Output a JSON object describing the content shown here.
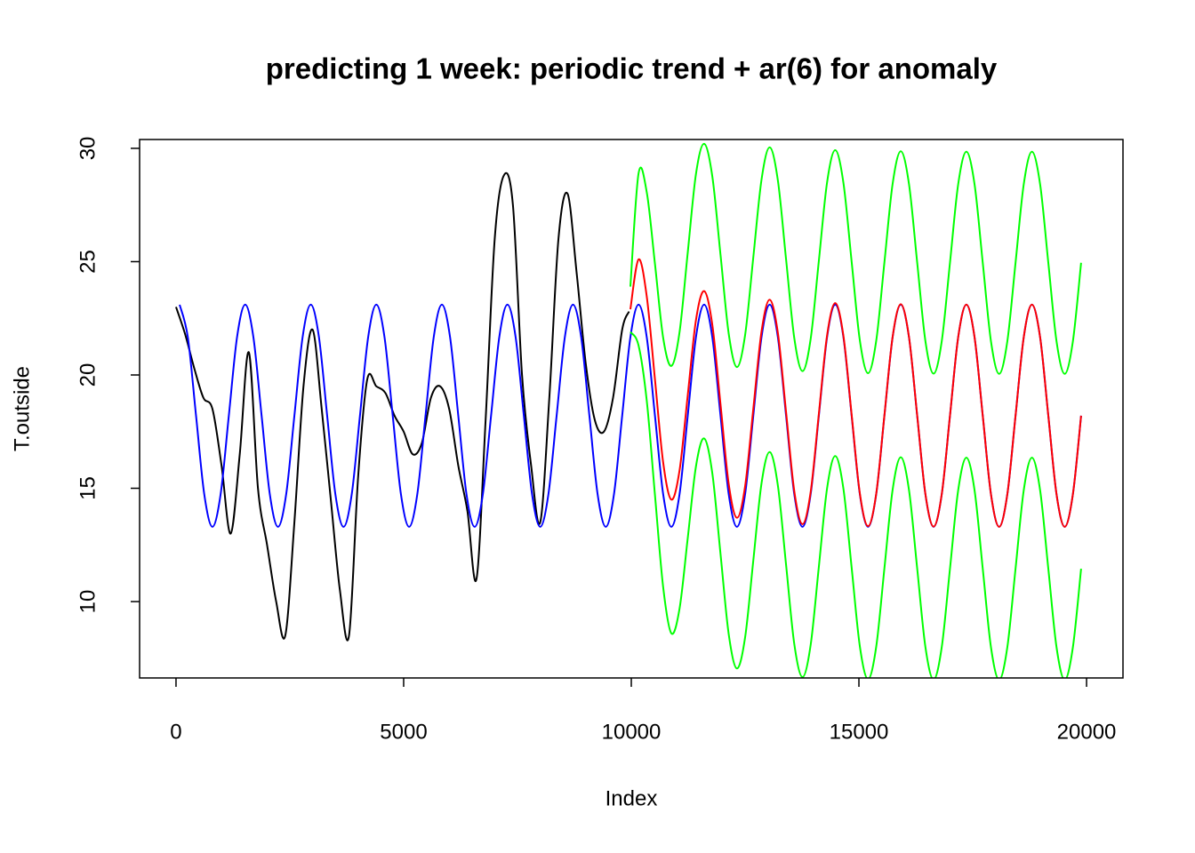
{
  "chart_data": {
    "type": "line",
    "title": "predicting 1 week: periodic trend + ar(6) for anomaly",
    "xlabel": "Index",
    "ylabel": "T.outside",
    "xlim": [
      -800,
      20800
    ],
    "ylim": [
      6.63,
      30.39
    ],
    "xticks": [
      0,
      5000,
      10000,
      15000,
      20000
    ],
    "yticks": [
      10,
      15,
      20,
      25,
      30
    ],
    "grid": false,
    "series": [
      {
        "color": "#000000",
        "x": [
          0,
          200,
          400,
          600,
          800,
          1000,
          1200,
          1400,
          1600,
          1800,
          2000,
          2200,
          2400,
          2600,
          2800,
          3000,
          3200,
          3400,
          3600,
          3800,
          4000,
          4200,
          4400,
          4600,
          4800,
          5000,
          5200,
          5400,
          5600,
          5800,
          6000,
          6200,
          6400,
          6600,
          6800,
          7000,
          7200,
          7400,
          7600,
          7800,
          8000,
          8200,
          8400,
          8600,
          8800,
          9000,
          9200,
          9400,
          9600,
          9800,
          9950
        ],
        "values": [
          23.0,
          21.8,
          20.3,
          19.0,
          18.5,
          16.0,
          13.0,
          16.5,
          21.0,
          15.0,
          12.5,
          10.0,
          8.5,
          13.5,
          19.5,
          22.0,
          18.5,
          14.5,
          10.5,
          8.5,
          15.5,
          19.8,
          19.5,
          19.2,
          18.2,
          17.5,
          16.5,
          17.0,
          19.0,
          19.5,
          18.5,
          16.0,
          14.0,
          11.0,
          18.0,
          26.0,
          28.8,
          27.5,
          20.0,
          16.0,
          13.5,
          19.0,
          26.0,
          28.0,
          24.5,
          20.5,
          18.0,
          17.5,
          19.0,
          22.0,
          22.8
        ]
      },
      {
        "color": "#0000ff",
        "x": [
          80,
          260,
          440,
          620,
          800,
          980,
          1160,
          1340,
          1520,
          1700,
          1880,
          2060,
          2240,
          2420,
          2600,
          2780,
          2960,
          3140,
          3320,
          3500,
          3680,
          3860,
          4040,
          4220,
          4400,
          4580,
          4760,
          4940,
          5120,
          5300,
          5480,
          5660,
          5840,
          6020,
          6200,
          6380,
          6560,
          6740,
          6920,
          7100,
          7280,
          7460,
          7640,
          7820,
          8000,
          8180,
          8360,
          8540,
          8720,
          8900,
          9080,
          9260,
          9440,
          9620,
          9800,
          9980,
          10160,
          10340,
          10520,
          10700,
          10880,
          11060,
          11240,
          11420,
          11600,
          11780,
          11960,
          12140,
          12320,
          12500,
          12680,
          12860,
          13040,
          13220,
          13400,
          13580,
          13760,
          13940,
          14120,
          14300,
          14480,
          14660,
          14840,
          15020,
          15200,
          15380,
          15560,
          15740,
          15920,
          16100,
          16280,
          16460,
          16640,
          16820,
          17000,
          17180,
          17360,
          17540,
          17720,
          17900,
          18080,
          18260,
          18440,
          18620,
          18800,
          18980,
          19160,
          19340,
          19520,
          19700,
          19880
        ],
        "values": [
          23.1,
          21.66,
          18.2,
          14.74,
          13.3,
          14.74,
          18.2,
          21.66,
          23.1,
          21.66,
          18.2,
          14.74,
          13.3,
          14.74,
          18.2,
          21.66,
          23.1,
          21.66,
          18.2,
          14.74,
          13.3,
          14.74,
          18.2,
          21.66,
          23.1,
          21.66,
          18.2,
          14.74,
          13.3,
          14.74,
          18.2,
          21.66,
          23.1,
          21.66,
          18.2,
          14.74,
          13.3,
          14.74,
          18.2,
          21.66,
          23.1,
          21.66,
          18.2,
          14.74,
          13.3,
          14.74,
          18.2,
          21.66,
          23.1,
          21.66,
          18.2,
          14.74,
          13.3,
          14.74,
          18.2,
          21.66,
          23.1,
          21.66,
          18.2,
          14.74,
          13.3,
          14.74,
          18.2,
          21.66,
          23.1,
          21.66,
          18.2,
          14.74,
          13.3,
          14.74,
          18.2,
          21.66,
          23.1,
          21.66,
          18.2,
          14.74,
          13.3,
          14.74,
          18.2,
          21.66,
          23.1,
          21.66,
          18.2,
          14.74,
          13.3,
          14.74,
          18.2,
          21.66,
          23.1,
          21.66,
          18.2,
          14.74,
          13.3,
          14.74,
          18.2,
          21.66,
          23.1,
          21.66,
          18.2,
          14.74,
          13.3,
          14.74,
          18.2,
          21.66,
          23.1,
          21.66,
          18.2,
          14.74,
          13.3,
          14.74,
          18.2
        ]
      },
      {
        "color": "#00ff00",
        "x": [
          9980,
          10160,
          10340,
          10520,
          10700,
          10880,
          11060,
          11240,
          11420,
          11600,
          11780,
          11960,
          12140,
          12320,
          12500,
          12680,
          12860,
          13040,
          13220,
          13400,
          13580,
          13760,
          13940,
          14120,
          14300,
          14480,
          14660,
          14840,
          15020,
          15200,
          15380,
          15560,
          15740,
          15920,
          16100,
          16280,
          16460,
          16640,
          16820,
          17000,
          17180,
          17360,
          17540,
          17720,
          17900,
          18080,
          18260,
          18440,
          18620,
          18800,
          18980,
          19160,
          19340,
          19520,
          19700,
          19880
        ],
        "values": [
          23.9,
          28.9,
          28.06,
          24.9,
          21.64,
          20.4,
          21.89,
          25.4,
          28.86,
          30.2,
          28.76,
          25.3,
          21.82,
          20.35,
          21.76,
          25.19,
          28.61,
          30.04,
          28.58,
          25.1,
          21.63,
          20.17,
          21.59,
          25.04,
          28.49,
          29.92,
          28.47,
          25.0,
          21.53,
          20.08,
          21.51,
          24.97,
          28.43,
          29.87,
          28.42,
          24.96,
          21.5,
          20.06,
          21.5,
          24.95,
          28.41,
          29.85,
          28.41,
          24.95,
          21.49,
          20.05,
          21.49,
          24.95,
          28.41,
          29.85,
          28.41,
          24.95,
          21.49,
          20.05,
          21.49,
          24.95
        ]
      },
      {
        "color": "#00ff00",
        "x": [
          9980,
          10160,
          10340,
          10520,
          10700,
          10880,
          11060,
          11240,
          11420,
          11600,
          11780,
          11960,
          12140,
          12320,
          12500,
          12680,
          12860,
          13040,
          13220,
          13400,
          13580,
          13760,
          13940,
          14120,
          14300,
          14480,
          14660,
          14840,
          15020,
          15200,
          15380,
          15560,
          15740,
          15920,
          16100,
          16280,
          16460,
          16640,
          16820,
          17000,
          17180,
          17360,
          17540,
          17720,
          17900,
          18080,
          18260,
          18440,
          18620,
          18800,
          18980,
          19160,
          19340,
          19520,
          19700,
          19880
        ],
        "values": [
          21.9,
          21.3,
          18.86,
          14.7,
          10.64,
          8.6,
          9.69,
          12.8,
          15.96,
          17.2,
          15.66,
          12.1,
          8.56,
          7.05,
          8.42,
          11.81,
          15.21,
          16.6,
          15.12,
          11.62,
          8.13,
          6.67,
          8.09,
          11.54,
          14.99,
          16.42,
          14.97,
          11.5,
          8.03,
          6.58,
          8.01,
          11.47,
          14.93,
          16.37,
          14.92,
          11.46,
          8.0,
          6.56,
          8.0,
          11.45,
          14.91,
          16.35,
          14.91,
          11.45,
          7.99,
          6.55,
          7.99,
          11.45,
          14.91,
          16.35,
          14.91,
          11.45,
          7.99,
          6.55,
          7.99,
          11.45
        ]
      },
      {
        "color": "#ff0000",
        "x": [
          9980,
          10160,
          10340,
          10520,
          10700,
          10880,
          11060,
          11240,
          11420,
          11600,
          11780,
          11960,
          12140,
          12320,
          12500,
          12680,
          12860,
          13040,
          13220,
          13400,
          13580,
          13760,
          13940,
          14120,
          14300,
          14480,
          14660,
          14840,
          15020,
          15200,
          15380,
          15560,
          15740,
          15920,
          16100,
          16280,
          16460,
          16640,
          16820,
          17000,
          17180,
          17360,
          17540,
          17720,
          17900,
          18080,
          18260,
          18440,
          18620,
          18800,
          18980,
          19160,
          19340,
          19520,
          19700,
          19880
        ],
        "values": [
          22.9,
          25.1,
          23.46,
          19.8,
          16.14,
          14.5,
          15.79,
          19.1,
          22.41,
          23.7,
          22.21,
          18.7,
          15.19,
          13.7,
          15.09,
          18.5,
          21.91,
          23.32,
          21.85,
          18.36,
          14.88,
          13.42,
          14.84,
          18.29,
          21.74,
          23.17,
          21.72,
          18.25,
          14.78,
          13.33,
          14.76,
          18.22,
          21.68,
          23.12,
          21.67,
          18.21,
          14.75,
          13.31,
          14.75,
          18.2,
          21.66,
          23.1,
          21.66,
          18.2,
          14.74,
          13.3,
          14.74,
          18.2,
          21.66,
          23.1,
          21.66,
          18.2,
          14.74,
          13.3,
          14.74,
          18.2
        ]
      }
    ]
  }
}
